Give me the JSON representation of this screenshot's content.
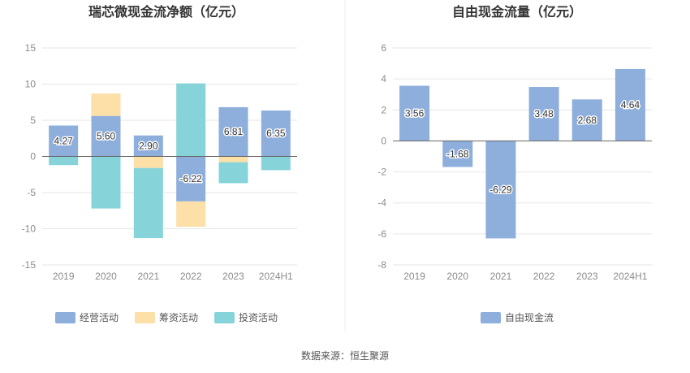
{
  "source_note": "数据来源：恒生聚源",
  "colors": {
    "operating": "#8eaedc",
    "financing": "#fddfa8",
    "investing": "#86d4d9",
    "free_cash_flow": "#8eaedc",
    "grid": "#e6e6e6",
    "zero_line": "#666666"
  },
  "chart_data": [
    {
      "type": "bar",
      "stacked": true,
      "title": "瑞芯微现金流净额（亿元）",
      "categories": [
        "2019",
        "2020",
        "2021",
        "2022",
        "2023",
        "2024H1"
      ],
      "ylim": [
        -15,
        15
      ],
      "yticks": [
        15,
        10,
        5,
        0,
        -5,
        -10,
        -15
      ],
      "grid": true,
      "legend_position": "bottom",
      "series": [
        {
          "name": "经营活动",
          "color_key": "operating",
          "values": [
            4.27,
            5.6,
            2.9,
            -6.22,
            6.81,
            6.35
          ],
          "labels": [
            "4.27",
            "5.60",
            "2.90",
            "-6.22",
            "6.81",
            "6.35"
          ]
        },
        {
          "name": "筹资活动",
          "color_key": "financing",
          "values": [
            0,
            3.1,
            -1.6,
            -3.5,
            -0.8,
            0
          ]
        },
        {
          "name": "投资活动",
          "color_key": "investing",
          "values": [
            -1.2,
            -7.2,
            -9.7,
            10.1,
            -2.9,
            -1.9
          ]
        }
      ]
    },
    {
      "type": "bar",
      "title": "自由现金流量（亿元）",
      "categories": [
        "2019",
        "2020",
        "2021",
        "2022",
        "2023",
        "2024H1"
      ],
      "ylim": [
        -8,
        6
      ],
      "yticks": [
        6,
        4,
        2,
        0,
        -2,
        -4,
        -6,
        -8
      ],
      "grid": true,
      "legend_position": "bottom",
      "series": [
        {
          "name": "自由现金流",
          "color_key": "free_cash_flow",
          "values": [
            3.56,
            -1.68,
            -6.29,
            3.48,
            2.68,
            4.64
          ],
          "labels": [
            "3.56",
            "-1.68",
            "-6.29",
            "3.48",
            "2.68",
            "4.64"
          ]
        }
      ]
    }
  ]
}
